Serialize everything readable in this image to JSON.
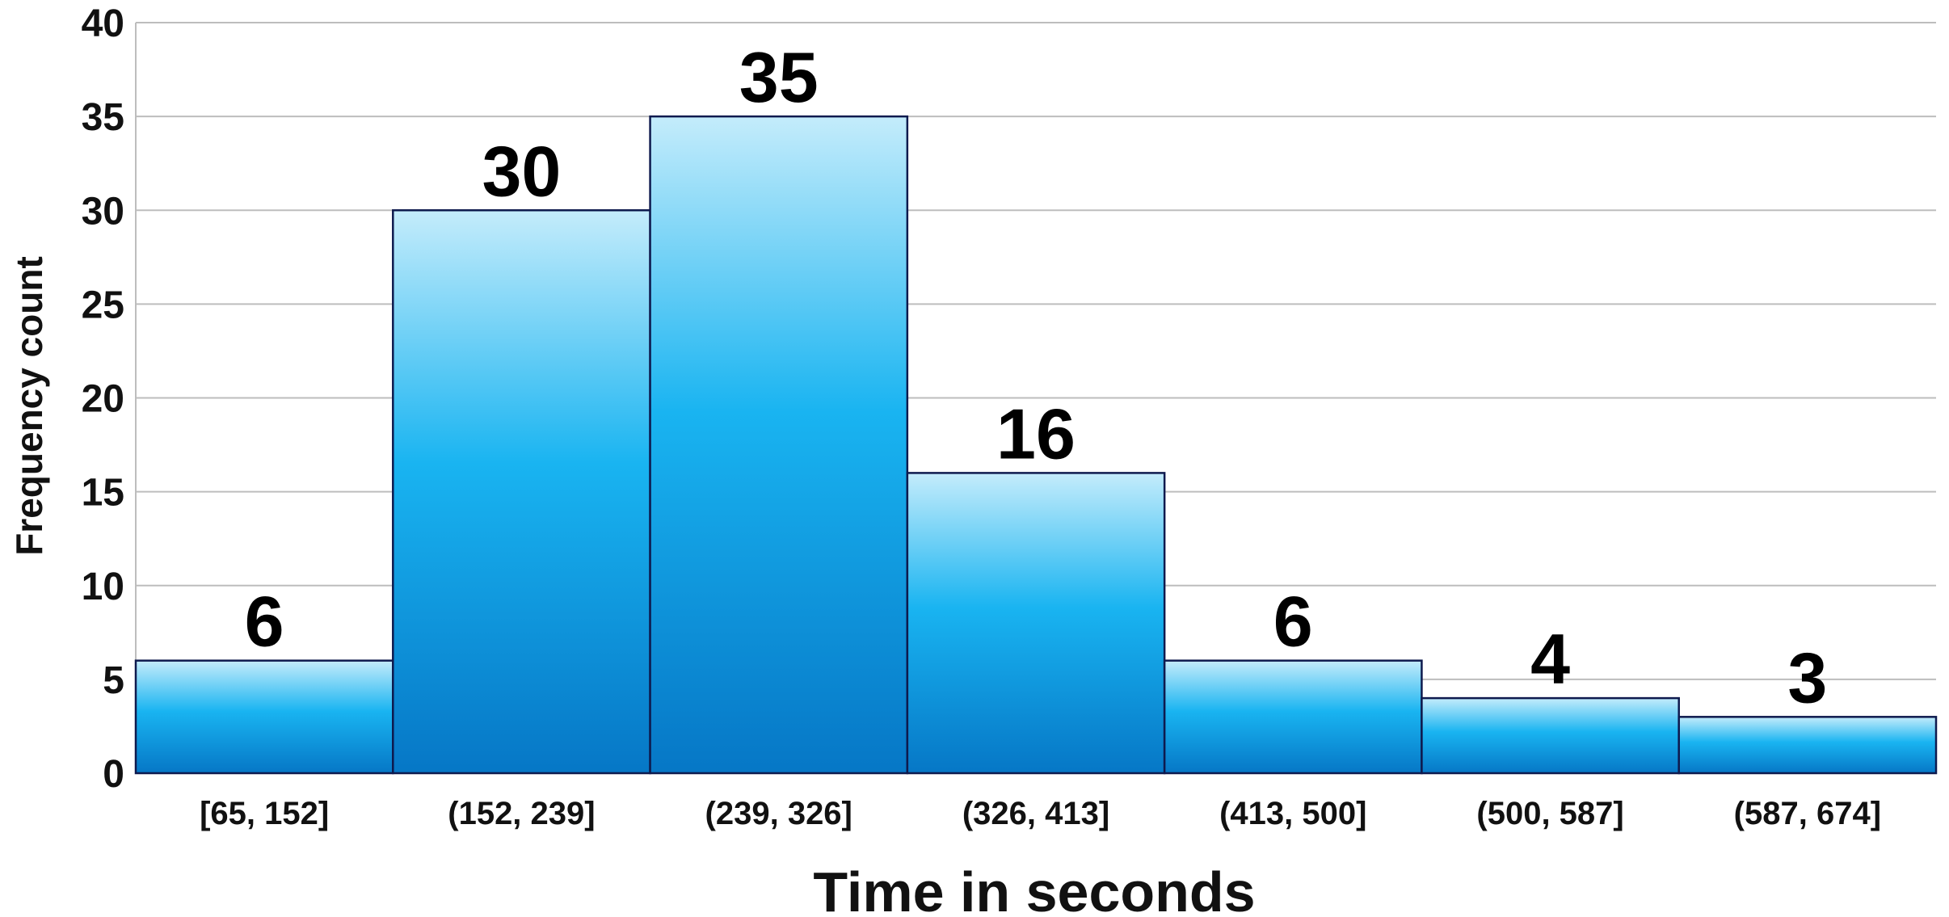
{
  "chart_data": {
    "type": "bar",
    "title": "",
    "xlabel": "Time in seconds",
    "ylabel": "Frequency count",
    "categories": [
      "[65, 152]",
      "(152, 239]",
      "(239, 326]",
      "(326, 413]",
      "(413, 500]",
      "(500, 587]",
      "(587, 674]"
    ],
    "values": [
      6,
      30,
      35,
      16,
      6,
      4,
      3
    ],
    "ylim": [
      0,
      40
    ],
    "yticks": [
      0,
      5,
      10,
      15,
      20,
      25,
      30,
      35,
      40
    ],
    "grid": true,
    "bar_gap": false,
    "show_data_labels": true
  },
  "colors": {
    "bar_top": "#c4ecfb",
    "bar_mid": "#19b4f1",
    "bar_bottom": "#0677c6",
    "bar_outline": "#0e1a4e",
    "grid": "#bdbdbd",
    "text": "#111111"
  }
}
